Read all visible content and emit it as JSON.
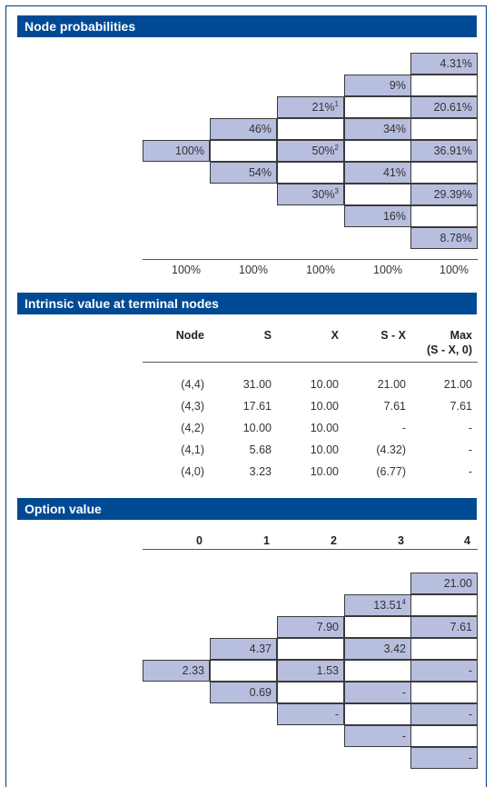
{
  "node_probabilities": {
    "title": "Node probabilities",
    "cells": [
      {
        "col": 4,
        "row": 0,
        "text": "4.31%",
        "sup": ""
      },
      {
        "col": 3,
        "row": 1,
        "text": "9%",
        "sup": ""
      },
      {
        "col": 2,
        "row": 2,
        "text": "21%",
        "sup": "1"
      },
      {
        "col": 4,
        "row": 2,
        "text": "20.61%",
        "sup": ""
      },
      {
        "col": 1,
        "row": 3,
        "text": "46%",
        "sup": ""
      },
      {
        "col": 3,
        "row": 3,
        "text": "34%",
        "sup": ""
      },
      {
        "col": 0,
        "row": 4,
        "text": "100%",
        "sup": ""
      },
      {
        "col": 2,
        "row": 4,
        "text": "50%",
        "sup": "2"
      },
      {
        "col": 4,
        "row": 4,
        "text": "36.91%",
        "sup": ""
      },
      {
        "col": 1,
        "row": 5,
        "text": "54%",
        "sup": ""
      },
      {
        "col": 3,
        "row": 5,
        "text": "41%",
        "sup": ""
      },
      {
        "col": 2,
        "row": 6,
        "text": "30%",
        "sup": "3"
      },
      {
        "col": 4,
        "row": 6,
        "text": "29.39%",
        "sup": ""
      },
      {
        "col": 3,
        "row": 7,
        "text": "16%",
        "sup": ""
      },
      {
        "col": 4,
        "row": 8,
        "text": "8.78%",
        "sup": ""
      }
    ],
    "empty_cells": [
      {
        "col": 4,
        "row": 1
      },
      {
        "col": 3,
        "row": 2
      },
      {
        "col": 2,
        "row": 3
      },
      {
        "col": 4,
        "row": 3
      },
      {
        "col": 1,
        "row": 4
      },
      {
        "col": 3,
        "row": 4
      },
      {
        "col": 2,
        "row": 5
      },
      {
        "col": 4,
        "row": 5
      },
      {
        "col": 3,
        "row": 6
      },
      {
        "col": 4,
        "row": 7
      }
    ],
    "totals": [
      "100%",
      "100%",
      "100%",
      "100%",
      "100%"
    ]
  },
  "intrinsic_value": {
    "title": "Intrinsic value at terminal nodes",
    "headers": [
      "Node",
      "S",
      "X",
      "S - X",
      "Max",
      "(S - X, 0)"
    ],
    "rows": [
      [
        "(4,4)",
        "31.00",
        "10.00",
        "21.00",
        "21.00"
      ],
      [
        "(4,3)",
        "17.61",
        "10.00",
        "7.61",
        "7.61"
      ],
      [
        "(4,2)",
        "10.00",
        "10.00",
        "-",
        "-"
      ],
      [
        "(4,1)",
        "5.68",
        "10.00",
        "(4.32)",
        "-"
      ],
      [
        "(4,0)",
        "3.23",
        "10.00",
        "(6.77)",
        "-"
      ]
    ]
  },
  "option_value": {
    "title": "Option value",
    "headers": [
      "0",
      "1",
      "2",
      "3",
      "4"
    ],
    "cells": [
      {
        "col": 4,
        "row": 0,
        "text": "21.00",
        "sup": ""
      },
      {
        "col": 3,
        "row": 1,
        "text": "13.51",
        "sup": "4"
      },
      {
        "col": 2,
        "row": 2,
        "text": "7.90",
        "sup": ""
      },
      {
        "col": 4,
        "row": 2,
        "text": "7.61",
        "sup": ""
      },
      {
        "col": 1,
        "row": 3,
        "text": "4.37",
        "sup": ""
      },
      {
        "col": 3,
        "row": 3,
        "text": "3.42",
        "sup": ""
      },
      {
        "col": 0,
        "row": 4,
        "text": "2.33",
        "sup": ""
      },
      {
        "col": 2,
        "row": 4,
        "text": "1.53",
        "sup": ""
      },
      {
        "col": 4,
        "row": 4,
        "text": "-",
        "sup": ""
      },
      {
        "col": 1,
        "row": 5,
        "text": "0.69",
        "sup": ""
      },
      {
        "col": 3,
        "row": 5,
        "text": "-",
        "sup": ""
      },
      {
        "col": 2,
        "row": 6,
        "text": "-",
        "sup": ""
      },
      {
        "col": 4,
        "row": 6,
        "text": "-",
        "sup": ""
      },
      {
        "col": 3,
        "row": 7,
        "text": "-",
        "sup": ""
      },
      {
        "col": 4,
        "row": 8,
        "text": "-",
        "sup": ""
      }
    ],
    "empty_cells": [
      {
        "col": 4,
        "row": 1
      },
      {
        "col": 3,
        "row": 2
      },
      {
        "col": 2,
        "row": 3
      },
      {
        "col": 4,
        "row": 3
      },
      {
        "col": 1,
        "row": 4
      },
      {
        "col": 3,
        "row": 4
      },
      {
        "col": 2,
        "row": 5
      },
      {
        "col": 4,
        "row": 5
      },
      {
        "col": 3,
        "row": 6
      },
      {
        "col": 4,
        "row": 7
      }
    ]
  },
  "colors": {
    "header_bg": "#004a94",
    "cell_fill": "#b8bede",
    "border": "#3a3a3a"
  }
}
